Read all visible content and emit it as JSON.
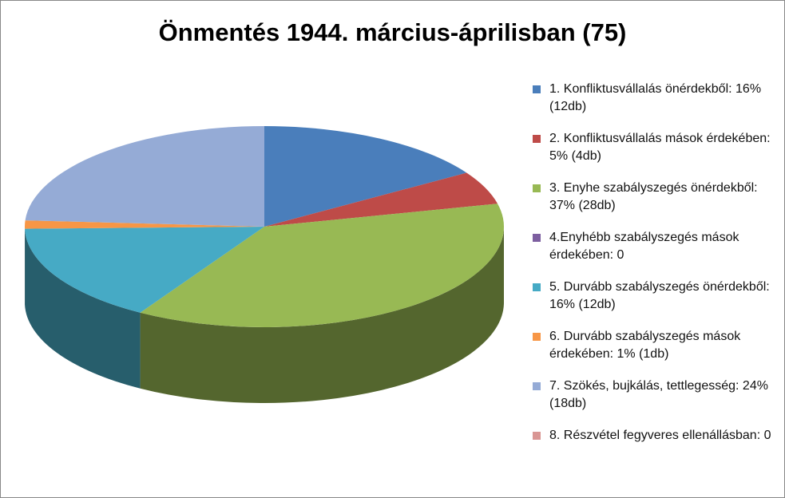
{
  "chart_data": {
    "type": "pie",
    "title": "Önmentés 1944. március-áprilisban (75)",
    "categories": [
      "1. Konfliktusvállalás önérdekből: 16% (12db)",
      "2. Konfliktusvállalás mások érdekében: 5% (4db)",
      "3. Enyhe szabályszegés önérdekből: 37% (28db)",
      "4.Enyhébb szabályszegés mások érdekében: 0",
      "5. Durvább szabályszegés önérdekből: 16% (12db)",
      "6. Durvább szabályszegés mások érdekében: 1% (1db)",
      "7. Szökés, bujkálás, tettlegesség: 24% (18db)",
      "8. Részvétel fegyveres ellenállásban: 0"
    ],
    "values": [
      12,
      4,
      28,
      0,
      12,
      1,
      18,
      0
    ],
    "colors": [
      "#4a7ebb",
      "#be4b48",
      "#98b954",
      "#7d5fa0",
      "#46aac5",
      "#f79646",
      "#95abd6",
      "#d99694"
    ],
    "legend": "right"
  }
}
